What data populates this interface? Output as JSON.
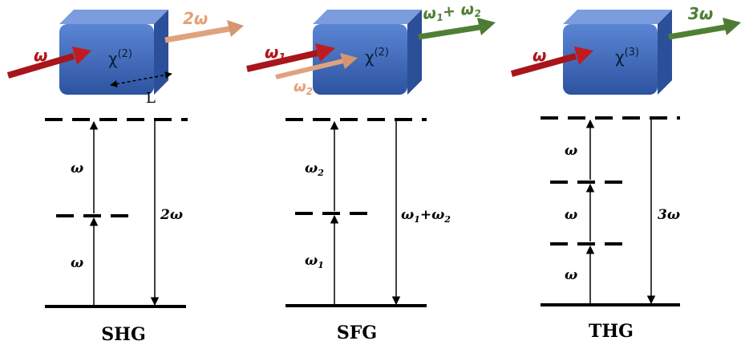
{
  "colors": {
    "crystal_front": "#3f6bc0",
    "crystal_top": "#6f94da",
    "crystal_side": "#2c4f96",
    "pump_red": "#b0161a",
    "beam_orange": "#e0a27e",
    "beam_green": "#4f7f35"
  },
  "shg": {
    "input_label": "ω",
    "chi_base": "χ",
    "chi_order": "(2)",
    "output_label": "2ω",
    "length_label": "L",
    "lower_photon": "ω",
    "upper_photon": "ω",
    "emission": "2ω",
    "title": "SHG"
  },
  "sfg": {
    "input1_label": "ω",
    "input1_sub": "1",
    "input2_label": "ω",
    "input2_sub": "2",
    "chi_base": "χ",
    "chi_order": "(2)",
    "output_w1": "ω",
    "output_sub1": "1",
    "output_plus": "+ ",
    "output_w2": "ω",
    "output_sub2": "2",
    "lower_w": "ω",
    "lower_sub": "1",
    "upper_w": "ω",
    "upper_sub": "2",
    "emission_w1": "ω",
    "emission_sub1": "1",
    "emission_plus": "+",
    "emission_w2": "ω",
    "emission_sub2": "2",
    "title": "SFG"
  },
  "thg": {
    "input_label": "ω",
    "chi_base": "χ",
    "chi_order": "(3)",
    "output_label": "3ω",
    "photon_top": "ω",
    "photon_mid": "ω",
    "photon_bottom": "ω",
    "emission": "3ω",
    "title": "THG"
  }
}
